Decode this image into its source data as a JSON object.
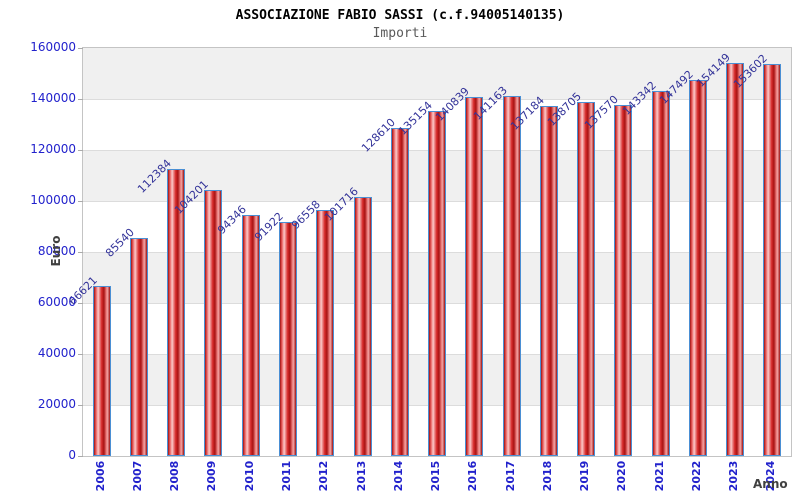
{
  "chart_data": {
    "type": "bar",
    "title": "ASSOCIAZIONE FABIO SASSI (c.f.94005140135)",
    "subtitle": "Importi",
    "xlabel": "Anno",
    "ylabel": "Euro",
    "categories": [
      "2006",
      "2007",
      "2008",
      "2009",
      "2010",
      "2011",
      "2012",
      "2013",
      "2014",
      "2015",
      "2016",
      "2017",
      "2018",
      "2019",
      "2020",
      "2021",
      "2022",
      "2023",
      "2024"
    ],
    "values": [
      66621,
      85540,
      112384,
      104201,
      94346,
      91922,
      96558,
      101716,
      128610,
      135154,
      140839,
      141163,
      137184,
      138705,
      137570,
      143342,
      147492,
      154149,
      153602
    ],
    "ylim": [
      0,
      160000
    ],
    "ytick_step": 20000,
    "grid": true,
    "legend": "none",
    "bar_labels_rotated_45deg": true,
    "x_labels_rotated_90deg": true,
    "colors": {
      "bar_border": "#4a8fd4",
      "bar_main": "#cc2222",
      "bar_highlight": "#fbc9c9",
      "axis_tick_text": "#2222cc",
      "value_label_text": "#333399",
      "axis_title_text": "#404040",
      "title_text": "#000000",
      "subtitle_text": "#5a5a5a",
      "band_gray": "#f0f0f0",
      "band_white": "#ffffff",
      "gridline": "#dcdcdc",
      "plot_border": "#c4c4c4",
      "background": "#ffffff"
    }
  }
}
